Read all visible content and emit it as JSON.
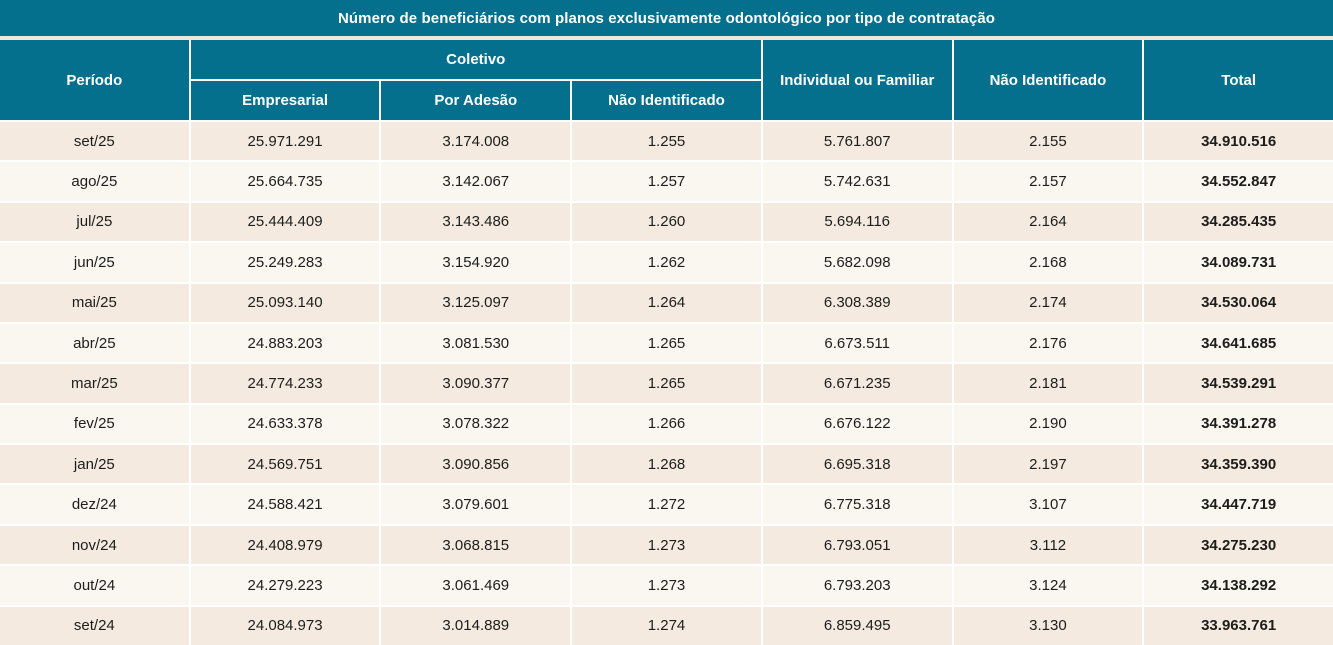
{
  "title": "Número de beneficiários com planos exclusivamente odontológico por tipo de contratação",
  "header": {
    "period": "Período",
    "coletivo_group": "Coletivo",
    "coletivo_sub": [
      "Empresarial",
      "Por Adesão",
      "Não Identificado"
    ],
    "individual": "Individual ou Familiar",
    "nao_identificado": "Não Identificado",
    "total": "Total"
  },
  "colors": {
    "header_teal": "#05708E",
    "row_odd": "#F4EAE0",
    "row_even": "#FAF6F0",
    "grid_line": "#FFFFFF",
    "separator": "#EDE7DD",
    "text": "#1D1D1B",
    "header_text": "#FFFFFF"
  },
  "chart_data": {
    "type": "table",
    "title": "Número de beneficiários com planos exclusivamente odontológico por tipo de contratação",
    "columns": [
      "Período",
      "Coletivo - Empresarial",
      "Coletivo - Por Adesão",
      "Coletivo - Não Identificado",
      "Individual ou Familiar",
      "Não Identificado",
      "Total"
    ],
    "rows": [
      [
        "set/25",
        "25.971.291",
        "3.174.008",
        "1.255",
        "5.761.807",
        "2.155",
        "34.910.516"
      ],
      [
        "ago/25",
        "25.664.735",
        "3.142.067",
        "1.257",
        "5.742.631",
        "2.157",
        "34.552.847"
      ],
      [
        "jul/25",
        "25.444.409",
        "3.143.486",
        "1.260",
        "5.694.116",
        "2.164",
        "34.285.435"
      ],
      [
        "jun/25",
        "25.249.283",
        "3.154.920",
        "1.262",
        "5.682.098",
        "2.168",
        "34.089.731"
      ],
      [
        "mai/25",
        "25.093.140",
        "3.125.097",
        "1.264",
        "6.308.389",
        "2.174",
        "34.530.064"
      ],
      [
        "abr/25",
        "24.883.203",
        "3.081.530",
        "1.265",
        "6.673.511",
        "2.176",
        "34.641.685"
      ],
      [
        "mar/25",
        "24.774.233",
        "3.090.377",
        "1.265",
        "6.671.235",
        "2.181",
        "34.539.291"
      ],
      [
        "fev/25",
        "24.633.378",
        "3.078.322",
        "1.266",
        "6.676.122",
        "2.190",
        "34.391.278"
      ],
      [
        "jan/25",
        "24.569.751",
        "3.090.856",
        "1.268",
        "6.695.318",
        "2.197",
        "34.359.390"
      ],
      [
        "dez/24",
        "24.588.421",
        "3.079.601",
        "1.272",
        "6.775.318",
        "3.107",
        "34.447.719"
      ],
      [
        "nov/24",
        "24.408.979",
        "3.068.815",
        "1.273",
        "6.793.051",
        "3.112",
        "34.275.230"
      ],
      [
        "out/24",
        "24.279.223",
        "3.061.469",
        "1.273",
        "6.793.203",
        "3.124",
        "34.138.292"
      ],
      [
        "set/24",
        "24.084.973",
        "3.014.889",
        "1.274",
        "6.859.495",
        "3.130",
        "33.963.761"
      ]
    ]
  }
}
